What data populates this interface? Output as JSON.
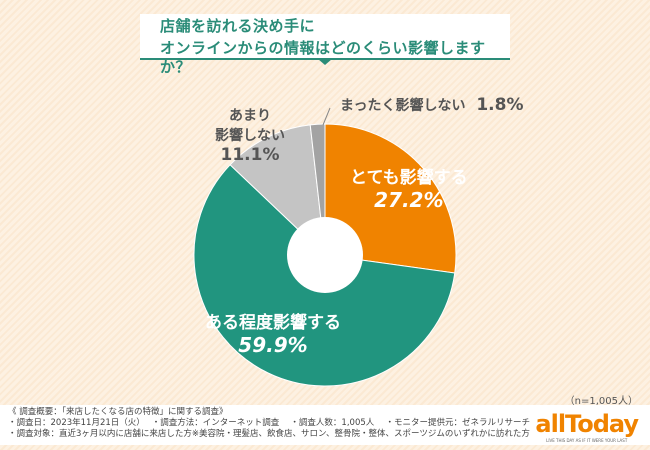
{
  "chart_data": {
    "type": "pie",
    "title": [
      "店舗を訪れる決め手に",
      "オンラインからの情報はどのくらい影響しますか？"
    ],
    "categories": [
      "とても影響する",
      "ある程度影響する",
      "あまり影響しない",
      "まったく影響しない"
    ],
    "values": [
      27.2,
      59.9,
      11.1,
      1.8
    ],
    "value_labels": [
      "27.2%",
      "59.9%",
      "11.1%",
      "1.8%"
    ],
    "colors": [
      "#f08300",
      "#21957f",
      "#c4c4c4",
      "#a3a3a3"
    ],
    "label_second_line": "影響しない",
    "label_first_line": "あまり",
    "sample_size": "（n=1,005人）"
  },
  "footer": {
    "lines": [
      "《 調査概要：「来店したくなる店の特徴」に関する調査》",
      "・調査日：2023年11月21日（火）　 ・調査方法：インターネット調査　 ・調査人数：1,005人　 ・モニター提供元：ゼネラルリサーチ",
      "・調査対象：直近3ヶ月以内に店舗に来店した方※美容院・理髪店、飲食店、サロン、整骨院・整体、スポーツジムのいずれかに訪れた方"
    ],
    "logo": "allToday",
    "logo_tagline": "LIVE THIS DAY AS IF IT WERE YOUR LAST"
  }
}
